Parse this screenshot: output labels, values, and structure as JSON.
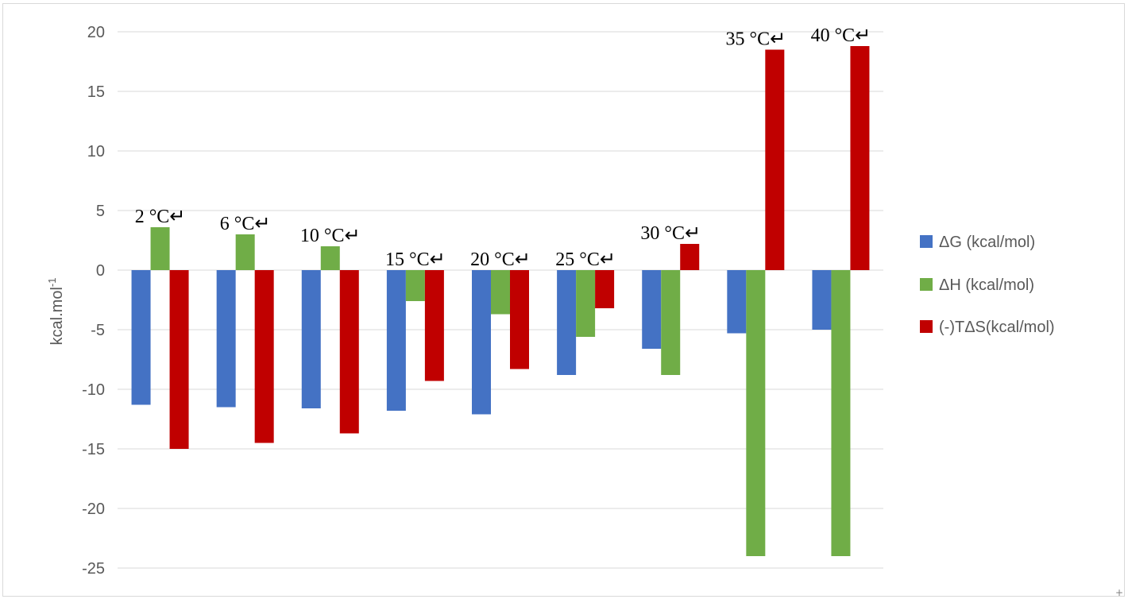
{
  "chart_data": {
    "type": "bar",
    "title": "",
    "xlabel": "",
    "ylabel": "kcal.mol",
    "ylabel_superscript": "-1",
    "ylim": [
      -25,
      20
    ],
    "yticks": [
      20,
      15,
      10,
      5,
      0,
      -5,
      -10,
      -15,
      -20,
      -25
    ],
    "grid": true,
    "legend_position": "right",
    "categories": [
      "2 °C↵",
      "6 °C↵",
      "10 °C↵",
      "15 °C↵",
      "20 °C↵",
      "25 °C↵",
      "30 °C↵",
      "35 °C↵",
      "40 °C↵"
    ],
    "series": [
      {
        "name": "ΔG (kcal/mol)",
        "color": "#4472C4",
        "values": [
          -11.3,
          -11.5,
          -11.6,
          -11.8,
          -12.1,
          -8.8,
          -6.6,
          -5.3,
          -5.0
        ]
      },
      {
        "name": "ΔH (kcal/mol)",
        "color": "#70AD47",
        "values": [
          3.6,
          3.0,
          2.0,
          -2.6,
          -3.7,
          -5.6,
          -8.8,
          -24.0,
          -24.0
        ]
      },
      {
        "name": "(-)TΔS(kcal/mol)",
        "color": "#C00000",
        "values": [
          -15.0,
          -14.5,
          -13.7,
          -9.3,
          -8.3,
          -3.2,
          2.2,
          18.5,
          18.8
        ]
      }
    ]
  }
}
